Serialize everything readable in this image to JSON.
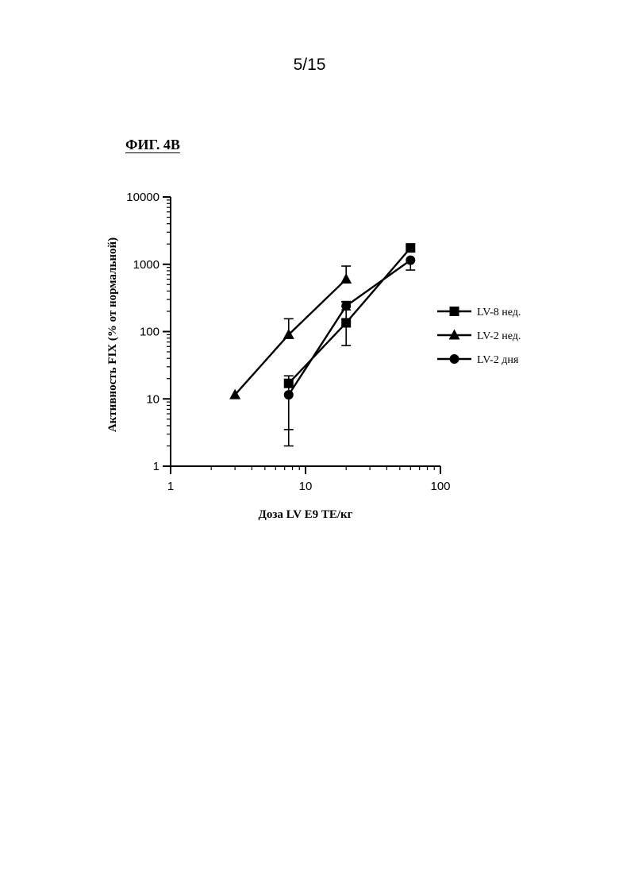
{
  "page": {
    "number": "5/15"
  },
  "figure": {
    "title": "ФИГ. 4В"
  },
  "chart_data": {
    "type": "line",
    "title": "",
    "xlabel": "Доза LV E9 ТЕ/кг",
    "ylabel": "Активность FIX (% от нормальной)",
    "xscale": "log",
    "yscale": "log",
    "xlim": [
      1,
      100
    ],
    "ylim": [
      1,
      10000
    ],
    "x_ticks": [
      1,
      10,
      100
    ],
    "x_tick_labels": [
      "1",
      "10",
      "100"
    ],
    "y_ticks": [
      1,
      10,
      100,
      1000,
      10000
    ],
    "y_tick_labels": [
      "1",
      "10",
      "100",
      "1000",
      "10000"
    ],
    "grid": false,
    "legend_position": "right",
    "series": [
      {
        "name": "LV-8 нед.",
        "marker": "square",
        "x": [
          7.5,
          20,
          60
        ],
        "y": [
          17,
          135,
          1750
        ],
        "err_low": [
          3.5,
          62,
          null
        ],
        "err_high": [
          22,
          275,
          null
        ]
      },
      {
        "name": "LV-2 нед.",
        "marker": "triangle",
        "x": [
          3,
          7.5,
          20
        ],
        "y": [
          11.5,
          90,
          600
        ],
        "err_low": [
          null,
          null,
          null
        ],
        "err_high": [
          null,
          155,
          940
        ]
      },
      {
        "name": "LV-2 дня",
        "marker": "circle",
        "x": [
          7.5,
          20,
          60
        ],
        "y": [
          11.5,
          240,
          1150
        ],
        "err_low": [
          2,
          210,
          820
        ],
        "err_high": [
          null,
          280,
          null
        ]
      }
    ]
  }
}
